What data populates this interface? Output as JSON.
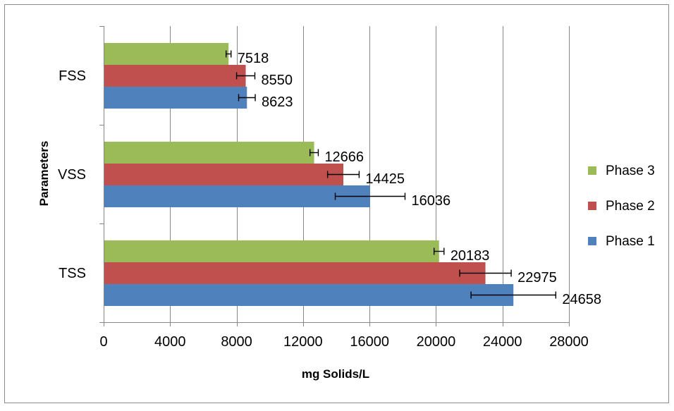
{
  "chart_data": {
    "type": "bar",
    "orientation": "horizontal",
    "title": "",
    "xlabel": "mg Solids/L",
    "ylabel": "Parameters",
    "categories": [
      "FSS",
      "VSS",
      "TSS"
    ],
    "series": [
      {
        "name": "Phase 3",
        "color": "#9BBB59",
        "values": [
          7518,
          12666,
          20183
        ],
        "errors": [
          150,
          250,
          300
        ]
      },
      {
        "name": "Phase 2",
        "color": "#C0504D",
        "values": [
          8550,
          14425,
          22975
        ],
        "errors": [
          550,
          950,
          1550
        ]
      },
      {
        "name": "Phase 1",
        "color": "#4F81BD",
        "values": [
          8623,
          16036,
          24658
        ],
        "errors": [
          500,
          2100,
          2550
        ]
      }
    ],
    "xlim": [
      0,
      28000
    ],
    "xticks": [
      0,
      4000,
      8000,
      12000,
      16000,
      20000,
      24000,
      28000
    ],
    "grid": true,
    "legend_position": "right",
    "error_bars": true
  }
}
